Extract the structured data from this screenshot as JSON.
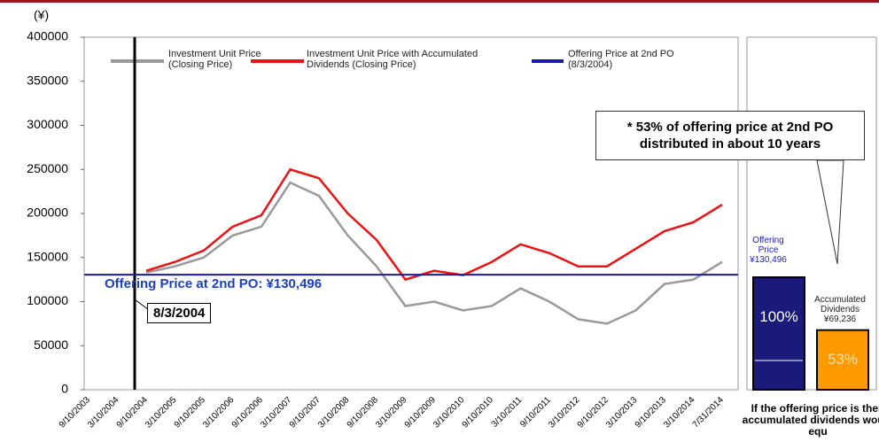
{
  "chart_data": {
    "type": "line",
    "y_label": "(¥)",
    "categories": [
      "9/10/2003",
      "3/10/2004",
      "9/10/2004",
      "3/10/2005",
      "9/10/2005",
      "3/10/2006",
      "9/10/2006",
      "3/10/2007",
      "9/10/2007",
      "3/10/2008",
      "9/10/2008",
      "3/10/2009",
      "9/10/2009",
      "3/10/2010",
      "9/10/2010",
      "3/10/2011",
      "9/10/2011",
      "3/10/2012",
      "9/10/2012",
      "3/10/2013",
      "9/10/2013",
      "3/10/2014",
      "7/31/2014"
    ],
    "series": [
      {
        "name": "Investment Unit Price (Closing Price)",
        "color": "#999999",
        "values": [
          null,
          null,
          133000,
          140000,
          150000,
          175000,
          185000,
          235000,
          220000,
          175000,
          140000,
          95000,
          100000,
          90000,
          95000,
          115000,
          100000,
          80000,
          75000,
          90000,
          120000,
          125000,
          145000
        ]
      },
      {
        "name": "Investment Unit Price with Accumulated Dividends (Closing Price)",
        "color": "#ee1111",
        "values": [
          null,
          null,
          135000,
          145000,
          158000,
          185000,
          198000,
          250000,
          240000,
          200000,
          170000,
          125000,
          135000,
          130000,
          145000,
          165000,
          155000,
          140000,
          140000,
          160000,
          180000,
          190000,
          210000
        ]
      }
    ],
    "offering_price": 130496,
    "offering_color": "#1a1aaa",
    "offering_legend": "Offering Price at 2nd PO (8/3/2004)",
    "offering_annotation": "Offering Price at 2nd PO: ¥130,496",
    "date_annotation": "8/3/2004",
    "callout": "* 53% of offering price at 2nd PO distributed in about 10 years",
    "ylim": [
      0,
      400000
    ],
    "yticks": [
      0,
      50000,
      100000,
      150000,
      200000,
      250000,
      300000,
      350000,
      400000
    ],
    "bars": {
      "categories": [
        "Offering Price",
        "Accumulated Dividends"
      ],
      "amounts": [
        130496,
        69236
      ],
      "amount_labels": [
        "¥130,496",
        "¥69,236"
      ],
      "values": [
        100,
        53
      ],
      "value_labels": [
        "100%",
        "53%"
      ],
      "colors": [
        "#1a1a7a",
        "#ff9900"
      ]
    },
    "footnote": "If the offering price is then accumulated dividends would equ"
  }
}
